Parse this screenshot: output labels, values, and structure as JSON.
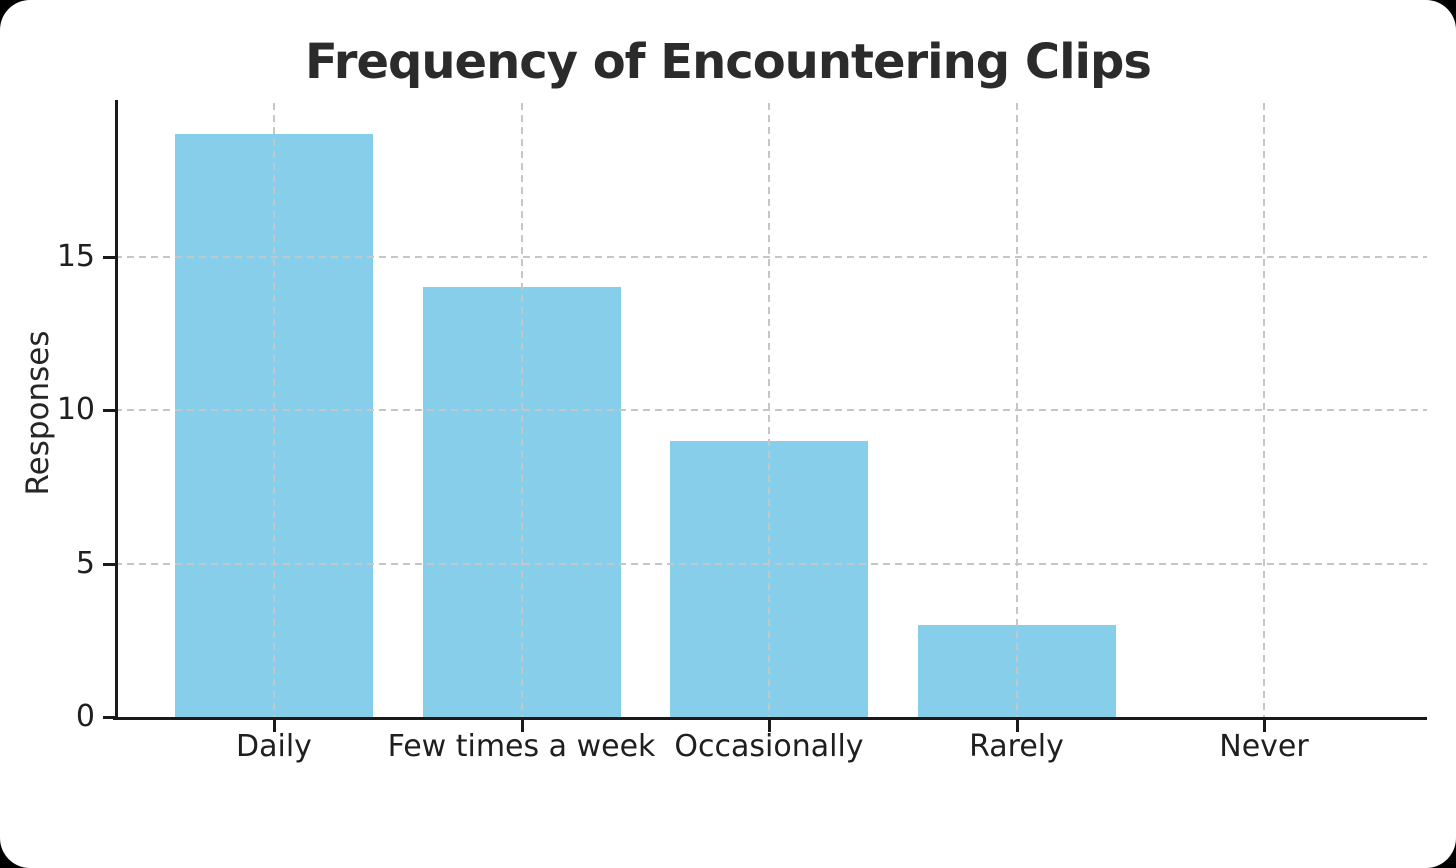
{
  "window": {
    "background_color": "#000000",
    "card_background_color": "#ffffff"
  },
  "chart_data": {
    "type": "bar",
    "title": "Frequency of Encountering Clips",
    "categories": [
      "Daily",
      "Few times a week",
      "Occasionally",
      "Rarely",
      "Never"
    ],
    "values": [
      19,
      14,
      9,
      3,
      0
    ],
    "xlabel": "",
    "ylabel": "Responses",
    "yticks": [
      0,
      5,
      10,
      15
    ],
    "ylim": [
      0,
      20
    ],
    "bar_color": "#87CEEB",
    "grid": {
      "visible": true,
      "style": "dashed",
      "color": "#c6c6c6",
      "horizontal": true,
      "vertical": true,
      "drawn_over_bars": true
    },
    "legend_position": "none",
    "spines": {
      "left": true,
      "bottom": true,
      "top": false,
      "right": false
    }
  }
}
